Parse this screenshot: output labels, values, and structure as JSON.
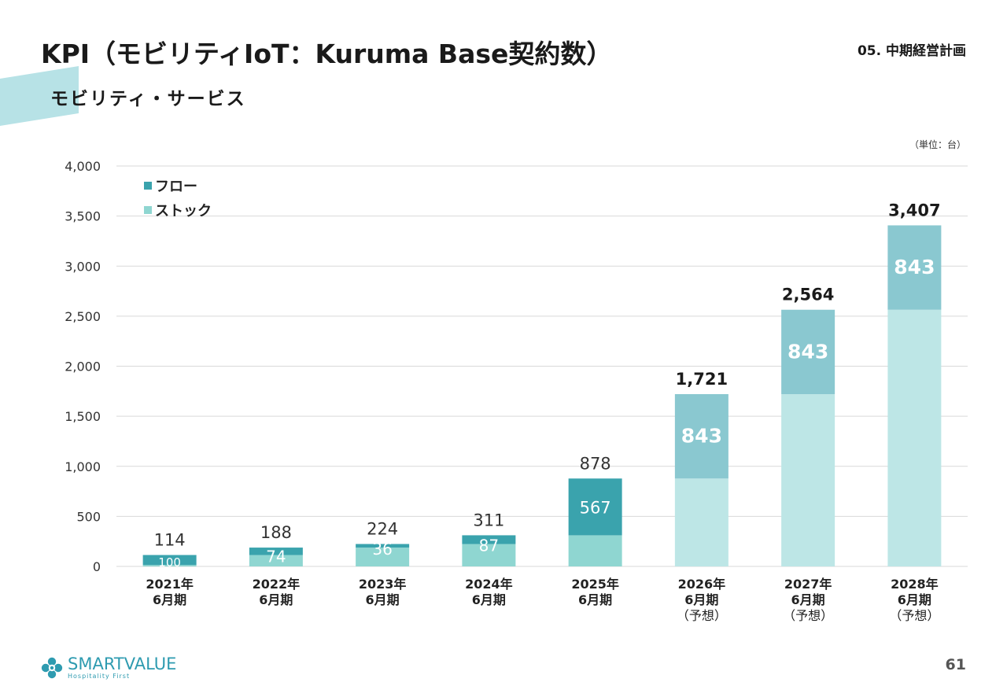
{
  "header": {
    "title": "KPI（モビリティIoT：Kuruma Base契約数）",
    "section": "05. 中期経営計画",
    "subtitle": "モビリティ・サービス",
    "unit": "（単位：台）"
  },
  "footer": {
    "logo_main": "SMARTVALUE",
    "logo_sub": "Hospitality First",
    "page_number": "61"
  },
  "colors": {
    "accent_band": "#b7e2e6",
    "flow_actual": "#3aa3ad",
    "stock_actual": "#8fd6d1",
    "flow_forecast": "#8ac8d0",
    "stock_forecast": "#bde6e6",
    "gridline": "#d9d9d9",
    "logo": "#2e9bb0"
  },
  "chart_data": {
    "type": "bar",
    "stacked": true,
    "categories": [
      [
        "2021年",
        "6月期"
      ],
      [
        "2022年",
        "6月期"
      ],
      [
        "2023年",
        "6月期"
      ],
      [
        "2024年",
        "6月期"
      ],
      [
        "2025年",
        "6月期"
      ],
      [
        "2026年",
        "6月期",
        "（予想）"
      ],
      [
        "2027年",
        "6月期",
        "（予想）"
      ],
      [
        "2028年",
        "6月期",
        "（予想）"
      ]
    ],
    "forecast": [
      false,
      false,
      false,
      false,
      false,
      true,
      true,
      true
    ],
    "series": [
      {
        "name": "ストック",
        "values": [
          14,
          114,
          188,
          224,
          311,
          878,
          1721,
          2564
        ]
      },
      {
        "name": "フロー",
        "values": [
          100,
          74,
          36,
          87,
          567,
          843,
          843,
          843
        ]
      }
    ],
    "segment_labels": [
      "100",
      "74",
      "36",
      "87",
      "567",
      "843",
      "843",
      "843"
    ],
    "totals": [
      "114",
      "188",
      "224",
      "311",
      "878",
      "1,721",
      "2,564",
      "3,407"
    ],
    "yticks": [
      "0",
      "500",
      "1,000",
      "1,500",
      "2,000",
      "2,500",
      "3,000",
      "3,500",
      "4,000"
    ],
    "ylim": [
      0,
      4000
    ],
    "grid": true,
    "legend_position": "top-left",
    "legend": [
      "フロー",
      "ストック"
    ],
    "title": "",
    "xlabel": "",
    "ylabel": ""
  }
}
